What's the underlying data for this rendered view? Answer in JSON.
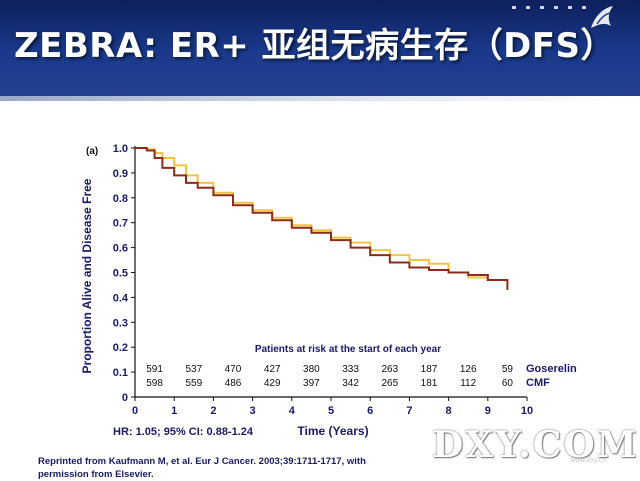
{
  "slide": {
    "title": "ZEBRA: ER+ 亚组无病生存（DFS）",
    "credit": "Reprinted from Kaufmann M, et al. Eur J Cancer. 2003;39:1711-1717, with permission from Elsevier.",
    "watermark": "DXY.COM",
    "watermark_sub": "www.dxy.cn"
  },
  "colors": {
    "header_top": "#0d1f5c",
    "header_bottom": "#243f8f",
    "goserelin": "#f5c342",
    "cmf": "#8b2c1a",
    "text_navy": "#1a1a66"
  },
  "chart_data": {
    "type": "line",
    "panel_label": "(a)",
    "xlabel": "Time (Years)",
    "ylabel": "Proportion Alive and Disease Free",
    "xlim": [
      0,
      10
    ],
    "ylim": [
      0,
      1.0
    ],
    "x_ticks": [
      "0",
      "1",
      "2",
      "3",
      "4",
      "5",
      "6",
      "7",
      "8",
      "9",
      "10"
    ],
    "y_ticks": [
      "0",
      "0.1",
      "0.2",
      "0.3",
      "0.4",
      "0.5",
      "0.6",
      "0.7",
      "0.8",
      "0.9",
      "1.0"
    ],
    "grid": false,
    "series": [
      {
        "name": "Goserelin",
        "color": "#f5c342",
        "x": [
          0,
          0.3,
          0.5,
          0.7,
          1.0,
          1.3,
          1.6,
          2.0,
          2.5,
          3.0,
          3.5,
          4.0,
          4.5,
          5.0,
          5.5,
          6.0,
          6.5,
          7.0,
          7.5,
          8.0,
          8.5,
          9.0,
          9.5
        ],
        "y": [
          1.0,
          0.995,
          0.98,
          0.96,
          0.93,
          0.89,
          0.86,
          0.82,
          0.78,
          0.75,
          0.72,
          0.69,
          0.67,
          0.64,
          0.62,
          0.59,
          0.57,
          0.55,
          0.535,
          0.5,
          0.48,
          0.47,
          0.46
        ]
      },
      {
        "name": "CMF",
        "color": "#8b2c1a",
        "x": [
          0,
          0.3,
          0.5,
          0.7,
          1.0,
          1.3,
          1.6,
          2.0,
          2.5,
          3.0,
          3.5,
          4.0,
          4.5,
          5.0,
          5.5,
          6.0,
          6.5,
          7.0,
          7.5,
          8.0,
          8.5,
          9.0,
          9.5
        ],
        "y": [
          1.0,
          0.99,
          0.96,
          0.92,
          0.89,
          0.86,
          0.84,
          0.81,
          0.77,
          0.74,
          0.71,
          0.68,
          0.66,
          0.63,
          0.6,
          0.57,
          0.54,
          0.52,
          0.51,
          0.5,
          0.49,
          0.47,
          0.43
        ]
      }
    ],
    "at_risk": {
      "title": "Patients at risk at the start of each year",
      "groups": [
        {
          "name": "Goserelin",
          "values": [
            "591",
            "537",
            "470",
            "427",
            "380",
            "333",
            "263",
            "187",
            "126",
            "59"
          ]
        },
        {
          "name": "CMF",
          "values": [
            "598",
            "559",
            "486",
            "429",
            "397",
            "342",
            "265",
            "181",
            "112",
            "60"
          ]
        }
      ]
    },
    "annotation": "HR: 1.05; 95% CI: 0.88-1.24"
  }
}
